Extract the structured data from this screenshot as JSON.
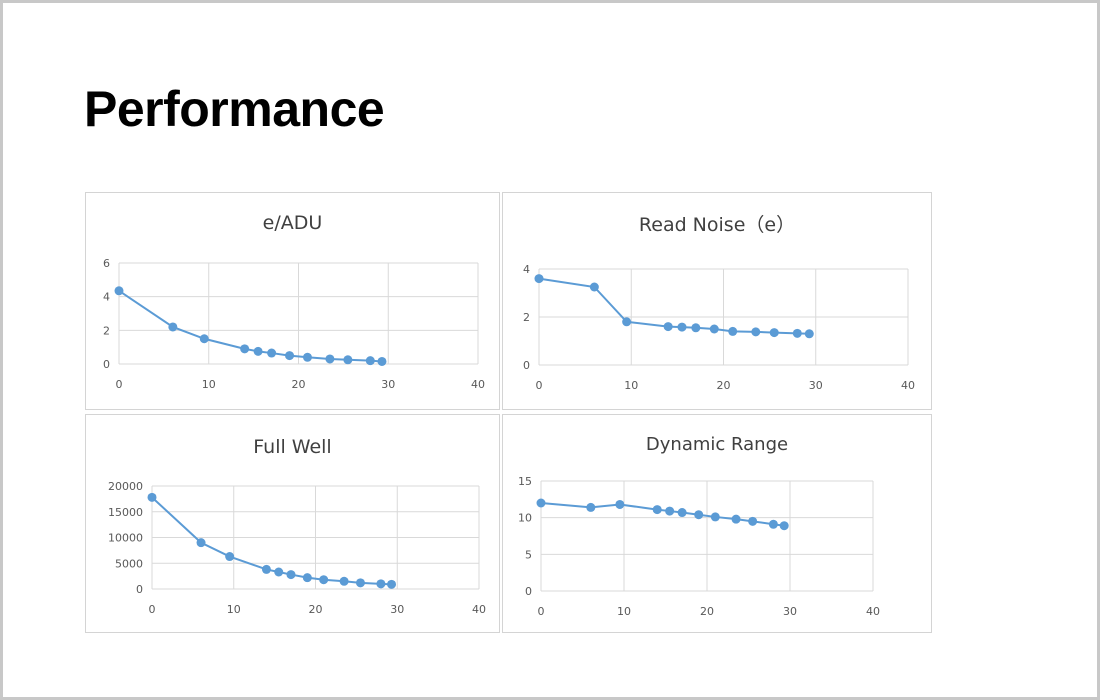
{
  "page": {
    "title": "Performance"
  },
  "chart_data": [
    {
      "type": "scatter",
      "title": "e/ADU",
      "xlim": [
        0,
        40
      ],
      "ylim": [
        0,
        6
      ],
      "xticks": [
        0,
        10,
        20,
        30,
        40
      ],
      "yticks": [
        0,
        2,
        4,
        6
      ],
      "grid": true,
      "legend": "none",
      "color": "#5b9bd5",
      "x": [
        0,
        6,
        9.5,
        14,
        15.5,
        17,
        19,
        21,
        23.5,
        25.5,
        28,
        29.3
      ],
      "y": [
        4.35,
        2.2,
        1.5,
        0.9,
        0.75,
        0.65,
        0.5,
        0.4,
        0.3,
        0.25,
        0.2,
        0.15
      ]
    },
    {
      "type": "scatter",
      "title": "Read Noise（e）",
      "xlim": [
        0,
        40
      ],
      "ylim": [
        0,
        4
      ],
      "xticks": [
        0,
        10,
        20,
        30,
        40
      ],
      "yticks": [
        0,
        2,
        4
      ],
      "grid": true,
      "legend": "none",
      "color": "#5b9bd5",
      "x": [
        0,
        6,
        9.5,
        14,
        15.5,
        17,
        19,
        21,
        23.5,
        25.5,
        28,
        29.3
      ],
      "y": [
        3.6,
        3.25,
        1.8,
        1.6,
        1.58,
        1.55,
        1.5,
        1.4,
        1.38,
        1.35,
        1.32,
        1.3
      ]
    },
    {
      "type": "scatter",
      "title": "Full Well",
      "xlim": [
        0,
        40
      ],
      "ylim": [
        0,
        20000
      ],
      "xticks": [
        0,
        10,
        20,
        30,
        40
      ],
      "yticks": [
        0,
        5000,
        10000,
        15000,
        20000
      ],
      "grid": true,
      "legend": "none",
      "color": "#5b9bd5",
      "x": [
        0,
        6,
        9.5,
        14,
        15.5,
        17,
        19,
        21,
        23.5,
        25.5,
        28,
        29.3
      ],
      "y": [
        17800,
        9000,
        6300,
        3800,
        3300,
        2800,
        2200,
        1800,
        1500,
        1200,
        1000,
        900
      ]
    },
    {
      "type": "scatter",
      "title": "Dynamic Range",
      "xlim": [
        0,
        40
      ],
      "ylim": [
        0,
        15
      ],
      "xticks": [
        0,
        10,
        20,
        30,
        40
      ],
      "yticks": [
        0,
        5,
        10,
        15
      ],
      "grid": true,
      "legend": "none",
      "color": "#5b9bd5",
      "x": [
        0,
        6,
        9.5,
        14,
        15.5,
        17,
        19,
        21,
        23.5,
        25.5,
        28,
        29.3
      ],
      "y": [
        12.0,
        11.4,
        11.8,
        11.1,
        10.9,
        10.7,
        10.4,
        10.1,
        9.8,
        9.5,
        9.1,
        8.9
      ]
    }
  ]
}
